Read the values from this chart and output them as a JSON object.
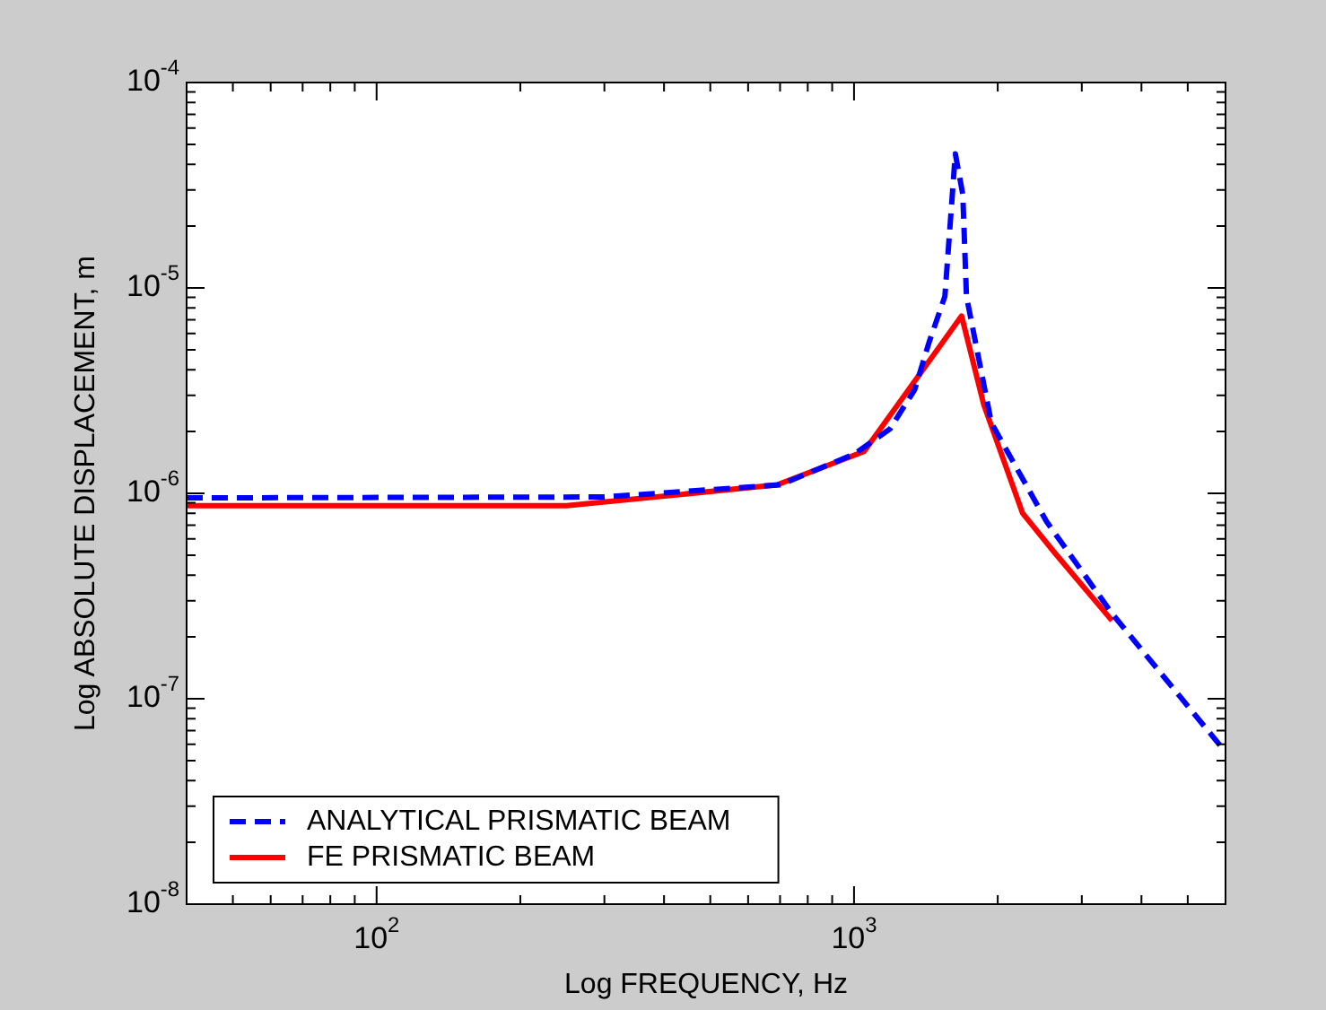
{
  "chart_data": {
    "type": "line",
    "xlabel": "Log FREQUENCY, Hz",
    "ylabel": "Log ABSOLUTE DISPLACEMENT, m",
    "log": "xy",
    "grid": false,
    "legend": "bottom left",
    "marker": "none",
    "xlim": [
      40,
      6000
    ],
    "ylim": [
      1e-08,
      0.0001
    ],
    "xticks": [
      {
        "value": 100,
        "label": "10$^{2}$"
      },
      {
        "value": 1000,
        "label": "10$^{3}$"
      }
    ],
    "yticks": [
      {
        "value": 1e-08,
        "label": "10$^{-8}$"
      },
      {
        "value": 1e-07,
        "label": "10$^{-7}$"
      },
      {
        "value": 1e-06,
        "label": "10$^{-6}$"
      },
      {
        "value": 1e-05,
        "label": "10$^{-5}$"
      },
      {
        "value": 0.0001,
        "label": "10$^{-4}$"
      }
    ],
    "series": [
      {
        "name": "ANALYTICAL PRISMATIC BEAM",
        "color": "#0000ff",
        "line_style": "dashed",
        "x": [
          40,
          300,
          700,
          1000,
          1190,
          1340,
          1435,
          1550,
          1630,
          1690,
          1720,
          1940,
          2530,
          3470,
          6000
        ],
        "values": [
          9.5e-07,
          9.6e-07,
          1.1e-06,
          1.55e-06,
          2.06e-06,
          3.2e-06,
          5.4e-06,
          9.1e-06,
          4.5e-05,
          2.85e-05,
          9.1e-06,
          2.2e-06,
          7.3e-07,
          2.6e-07,
          5.5e-08
        ]
      },
      {
        "name": "FE PRISMATIC BEAM",
        "color": "#ff0000",
        "line_style": "solid",
        "x": [
          40,
          250,
          690,
          1050,
          1680,
          1870,
          2255,
          2630,
          3470
        ],
        "values": [
          8.7e-07,
          8.7e-07,
          1.1e-06,
          1.6e-06,
          7.3e-06,
          2.7e-06,
          8e-07,
          5.15e-07,
          2.4e-07
        ]
      }
    ]
  }
}
